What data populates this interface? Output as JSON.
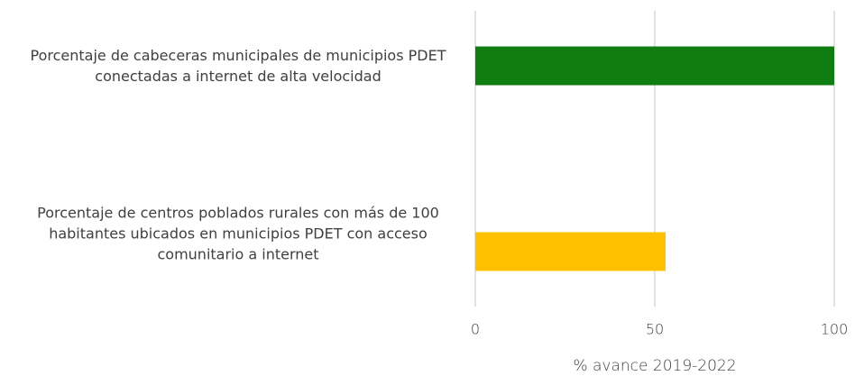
{
  "chart_data": {
    "type": "bar",
    "orientation": "horizontal",
    "categories": [
      "Porcentaje de cabeceras municipales de municipios PDET conectadas a internet de alta velocidad",
      "Porcentaje de centros poblados rurales con más de 100 habitantes ubicados en municipios PDET con acceso comunitario a internet"
    ],
    "values": [
      100,
      53
    ],
    "colors": [
      "#0f7d12",
      "#ffc000"
    ],
    "xlim": [
      0,
      100
    ],
    "xticks": [
      0,
      50,
      100
    ],
    "grid": true,
    "xlabel": "% avance 2019-2022"
  }
}
